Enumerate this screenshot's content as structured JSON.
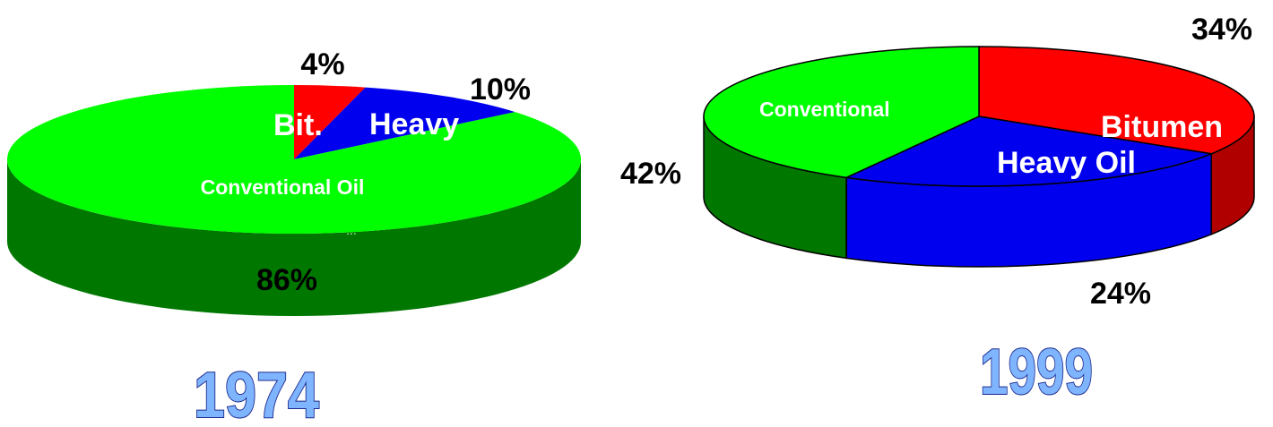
{
  "chart_data": [
    {
      "type": "pie",
      "title": "1974",
      "series": [
        {
          "label": "Bit.",
          "value": 4,
          "value_label": "4%",
          "color": "#ff0000",
          "side_color": "#b00000"
        },
        {
          "label": "Heavy",
          "value": 10,
          "value_label": "10%",
          "color": "#0000ee",
          "side_color": "#0000aa"
        },
        {
          "label": "Conventional Oil",
          "value": 86,
          "value_label": "86%",
          "color": "#00ff00",
          "side_color": "#007800"
        }
      ],
      "extra_text": "..."
    },
    {
      "type": "pie",
      "title": "1999",
      "series": [
        {
          "label": "Bitumen",
          "value": 34,
          "value_label": "34%",
          "color": "#ff0000",
          "side_color": "#b00000"
        },
        {
          "label": "Heavy Oil",
          "value": 24,
          "value_label": "24%",
          "color": "#0000ee",
          "side_color": "#0000ee"
        },
        {
          "label": "Conventional",
          "value": 42,
          "value_label": "42%",
          "color": "#00ff00",
          "side_color": "#007800"
        }
      ]
    }
  ]
}
